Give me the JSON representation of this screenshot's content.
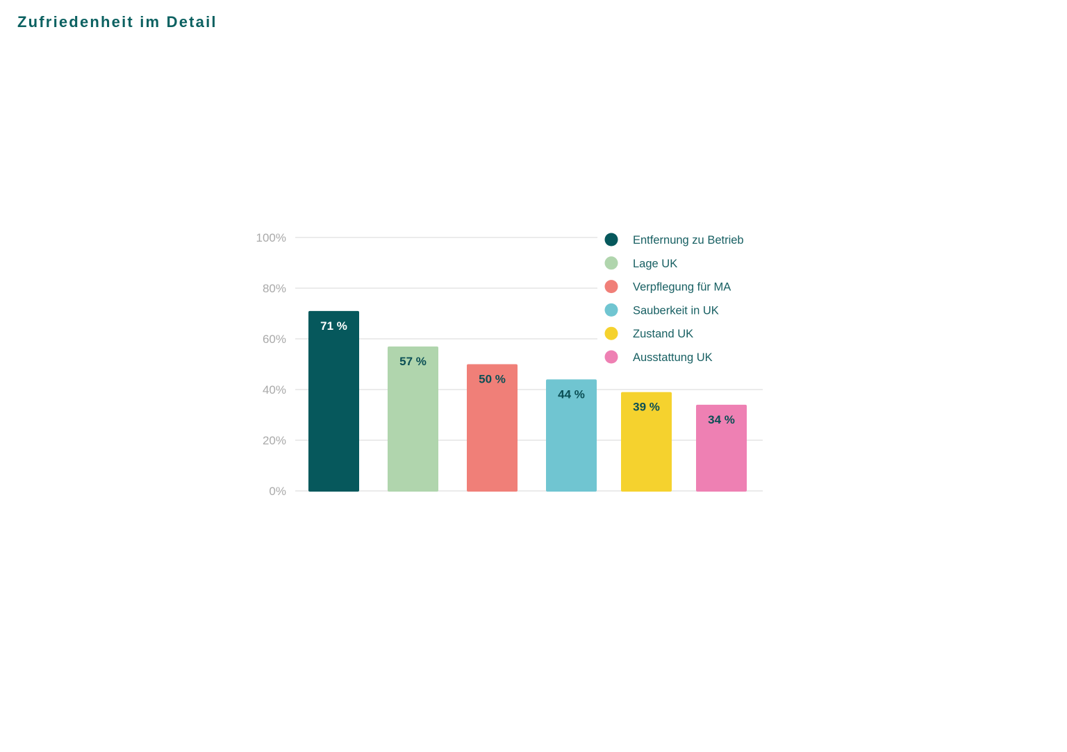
{
  "title": "Zufriedenheit im Detail",
  "chart_data": {
    "type": "bar",
    "title": "Zufriedenheit im Detail",
    "categories": [
      "Entfernung zu Betrieb",
      "Lage UK",
      "Verpflegung für MA",
      "Sauberkeit in UK",
      "Zustand UK",
      "Ausstattung UK"
    ],
    "values": [
      71,
      57,
      50,
      44,
      39,
      34
    ],
    "data_labels": [
      "71 %",
      "57 %",
      "50 %",
      "44 %",
      "39 %",
      "34 %"
    ],
    "colors": [
      "#06585c",
      "#b0d5ad",
      "#f07f78",
      "#70c5d1",
      "#f5d22e",
      "#ee80b3"
    ],
    "label_colors": [
      "#ffffff",
      "#0b4f55",
      "#0b4f55",
      "#0b4f55",
      "#0b4f55",
      "#0b4f55"
    ],
    "yticks": [
      "0%",
      "20%",
      "40%",
      "60%",
      "80%",
      "100%"
    ],
    "ylim": [
      0,
      100
    ],
    "grid": true,
    "legend": "top-right",
    "xlabel": "",
    "ylabel": ""
  }
}
